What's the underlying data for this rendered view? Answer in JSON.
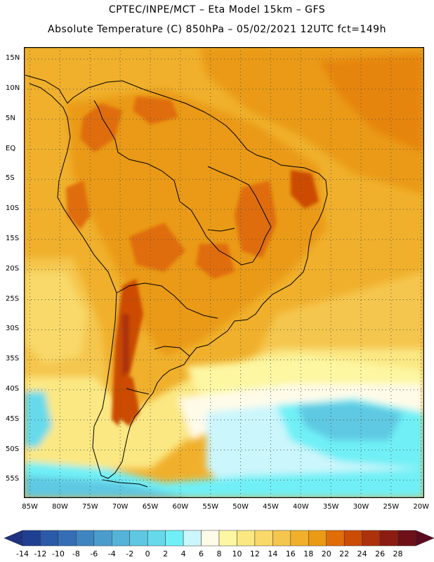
{
  "header": {
    "line1": "CPTEC/INPE/MCT –  Eta Model 15km – GFS",
    "line2": "Absolute Temperature (C) 850hPa – 05/02/2021 12UTC fct=149h"
  },
  "map": {
    "lat_labels": [
      "15N",
      "10N",
      "5N",
      "EQ",
      "5S",
      "10S",
      "15S",
      "20S",
      "25S",
      "30S",
      "35S",
      "40S",
      "45S",
      "50S",
      "55S"
    ],
    "lat_values": [
      15,
      10,
      5,
      0,
      -5,
      -10,
      -15,
      -20,
      -25,
      -30,
      -35,
      -40,
      -45,
      -50,
      -55
    ],
    "lon_labels": [
      "85W",
      "80W",
      "75W",
      "70W",
      "65W",
      "60W",
      "55W",
      "50W",
      "45W",
      "40W",
      "35W",
      "30W",
      "25W",
      "20W"
    ],
    "lon_values": [
      -85,
      -80,
      -75,
      -70,
      -65,
      -60,
      -55,
      -50,
      -45,
      -40,
      -35,
      -30,
      -25,
      -20
    ],
    "extent": {
      "lon_min": -86,
      "lon_max": -19.5,
      "lat_min": -58,
      "lat_max": 17
    },
    "grid": "dotted"
  },
  "colorbar": {
    "labels": [
      "-14",
      "-12",
      "-10",
      "-8",
      "-6",
      "-4",
      "-2",
      "0",
      "2",
      "4",
      "6",
      "8",
      "10",
      "12",
      "14",
      "16",
      "18",
      "20",
      "22",
      "24",
      "26",
      "28"
    ],
    "values": [
      -14,
      -12,
      -10,
      -8,
      -6,
      -4,
      -2,
      0,
      2,
      4,
      6,
      8,
      10,
      12,
      14,
      16,
      18,
      20,
      22,
      24,
      26,
      28
    ],
    "colors": [
      "#1f3f93",
      "#2a5aa8",
      "#356eb5",
      "#3f86c1",
      "#4a9ccc",
      "#55b2d8",
      "#5ec8e2",
      "#66daea",
      "#70f0f6",
      "#cbf6fc",
      "#fffbe9",
      "#fdf7a2",
      "#fbe883",
      "#f8d969",
      "#f5c64e",
      "#f0b02c",
      "#ea9a14",
      "#e06d07",
      "#cc4c05",
      "#ad310b",
      "#8c1c12",
      "#6e1018"
    ],
    "low_color": "#20327f",
    "high_color": "#5c0a20"
  }
}
